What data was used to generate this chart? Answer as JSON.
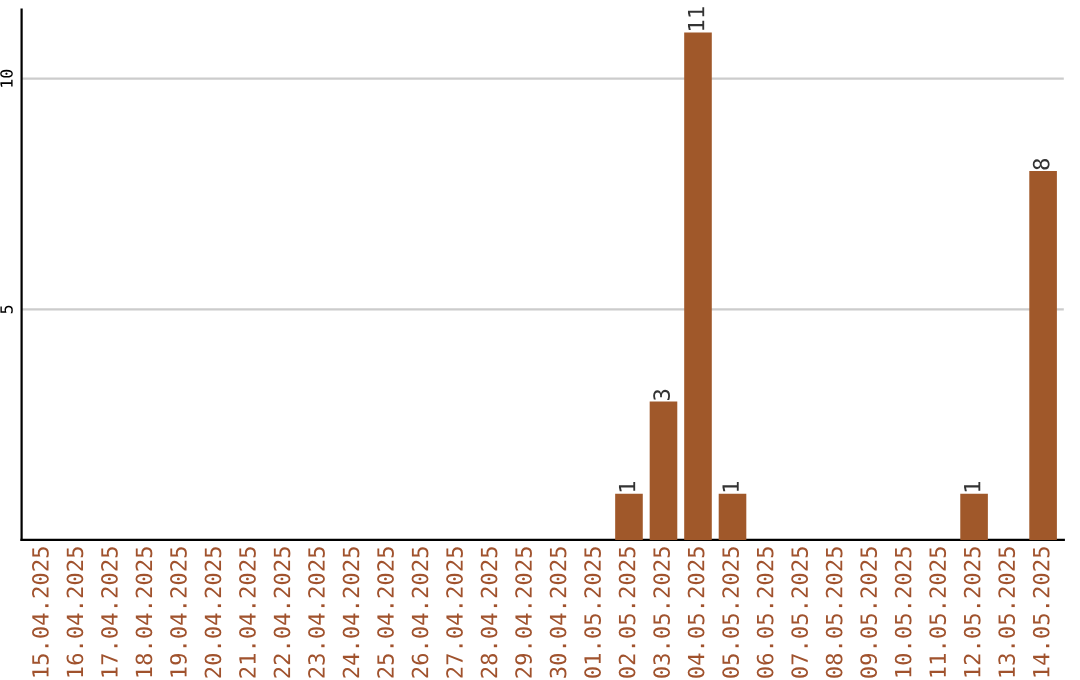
{
  "chart_data": {
    "type": "bar",
    "categories": [
      "15.04.2025",
      "16.04.2025",
      "17.04.2025",
      "18.04.2025",
      "19.04.2025",
      "20.04.2025",
      "21.04.2025",
      "22.04.2025",
      "23.04.2025",
      "24.04.2025",
      "25.04.2025",
      "26.04.2025",
      "27.04.2025",
      "28.04.2025",
      "29.04.2025",
      "30.04.2025",
      "01.05.2025",
      "02.05.2025",
      "03.05.2025",
      "04.05.2025",
      "05.05.2025",
      "06.05.2025",
      "07.05.2025",
      "08.05.2025",
      "09.05.2025",
      "10.05.2025",
      "11.05.2025",
      "12.05.2025",
      "13.05.2025",
      "14.05.2025"
    ],
    "values": [
      0,
      0,
      0,
      0,
      0,
      0,
      0,
      0,
      0,
      0,
      0,
      0,
      0,
      0,
      0,
      0,
      0,
      1,
      3,
      11,
      1,
      0,
      0,
      0,
      0,
      0,
      0,
      1,
      0,
      8
    ],
    "value_labels": [
      null,
      null,
      null,
      null,
      null,
      null,
      null,
      null,
      null,
      null,
      null,
      null,
      null,
      null,
      null,
      null,
      null,
      "1",
      "3",
      "11",
      "1",
      null,
      null,
      null,
      null,
      null,
      null,
      "1",
      null,
      "8"
    ],
    "color": "#a0582a",
    "ylim": [
      0,
      11.5
    ],
    "yticks": [
      5,
      10
    ],
    "grid": "y"
  }
}
